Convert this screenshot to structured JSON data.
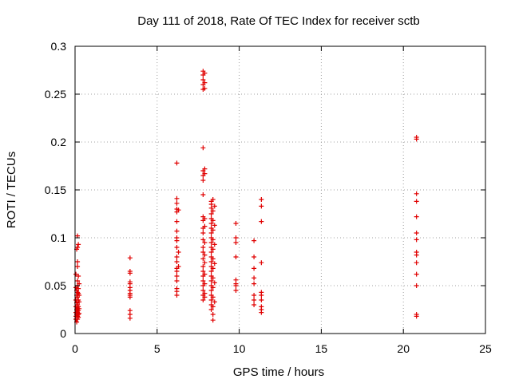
{
  "chart_data": {
    "type": "scatter",
    "title": "Day 111 of 2018, Rate Of TEC Index for receiver sctb",
    "xlabel": "GPS time / hours",
    "ylabel": "ROTI / TECUs",
    "xlim": [
      0,
      25
    ],
    "ylim": [
      0,
      0.3
    ],
    "xticks": [
      0,
      5,
      10,
      15,
      20,
      25
    ],
    "xtick_labels": [
      "0",
      "5",
      "10",
      "15",
      "20",
      "25"
    ],
    "yticks": [
      0,
      0.05,
      0.1,
      0.15,
      0.2,
      0.25,
      0.3
    ],
    "ytick_labels": [
      "0",
      "0.05",
      "0.1",
      "0.15",
      "0.2",
      "0.25",
      "0.3"
    ],
    "grid": true,
    "marker": "+",
    "color": "#e00000",
    "series": [
      {
        "name": "ROTI",
        "points": [
          [
            0.05,
            0.062
          ],
          [
            0.05,
            0.048
          ],
          [
            0.05,
            0.035
          ],
          [
            0.05,
            0.028
          ],
          [
            0.05,
            0.022
          ],
          [
            0.05,
            0.018
          ],
          [
            0.05,
            0.015
          ],
          [
            0.1,
            0.088
          ],
          [
            0.1,
            0.045
          ],
          [
            0.1,
            0.04
          ],
          [
            0.1,
            0.032
          ],
          [
            0.1,
            0.025
          ],
          [
            0.1,
            0.02
          ],
          [
            0.1,
            0.012
          ],
          [
            0.15,
            0.102
          ],
          [
            0.15,
            0.09
          ],
          [
            0.15,
            0.075
          ],
          [
            0.15,
            0.07
          ],
          [
            0.15,
            0.055
          ],
          [
            0.15,
            0.05
          ],
          [
            0.15,
            0.043
          ],
          [
            0.15,
            0.038
          ],
          [
            0.15,
            0.03
          ],
          [
            0.15,
            0.026
          ],
          [
            0.15,
            0.022
          ],
          [
            0.15,
            0.018
          ],
          [
            0.15,
            0.015
          ],
          [
            0.2,
            0.093
          ],
          [
            0.2,
            0.06
          ],
          [
            0.2,
            0.047
          ],
          [
            0.2,
            0.042
          ],
          [
            0.2,
            0.035
          ],
          [
            0.2,
            0.028
          ],
          [
            0.2,
            0.024
          ],
          [
            0.2,
            0.02
          ],
          [
            0.2,
            0.017
          ],
          [
            0.25,
            0.052
          ],
          [
            0.25,
            0.04
          ],
          [
            0.25,
            0.033
          ],
          [
            0.25,
            0.026
          ],
          [
            0.25,
            0.021
          ],
          [
            3.35,
            0.079
          ],
          [
            3.35,
            0.065
          ],
          [
            3.35,
            0.063
          ],
          [
            3.35,
            0.054
          ],
          [
            3.35,
            0.052
          ],
          [
            3.35,
            0.048
          ],
          [
            3.35,
            0.045
          ],
          [
            3.35,
            0.042
          ],
          [
            3.35,
            0.04
          ],
          [
            3.35,
            0.038
          ],
          [
            3.35,
            0.024
          ],
          [
            3.35,
            0.02
          ],
          [
            3.35,
            0.016
          ],
          [
            6.2,
            0.178
          ],
          [
            6.2,
            0.141
          ],
          [
            6.2,
            0.136
          ],
          [
            6.2,
            0.13
          ],
          [
            6.2,
            0.127
          ],
          [
            6.2,
            0.117
          ],
          [
            6.2,
            0.107
          ],
          [
            6.2,
            0.1
          ],
          [
            6.2,
            0.097
          ],
          [
            6.2,
            0.09
          ],
          [
            6.2,
            0.08
          ],
          [
            6.2,
            0.075
          ],
          [
            6.2,
            0.068
          ],
          [
            6.2,
            0.065
          ],
          [
            6.2,
            0.06
          ],
          [
            6.2,
            0.055
          ],
          [
            6.2,
            0.047
          ],
          [
            6.2,
            0.044
          ],
          [
            6.2,
            0.04
          ],
          [
            6.3,
            0.129
          ],
          [
            6.3,
            0.085
          ],
          [
            6.3,
            0.07
          ],
          [
            7.8,
            0.274
          ],
          [
            7.8,
            0.27
          ],
          [
            7.8,
            0.265
          ],
          [
            7.8,
            0.26
          ],
          [
            7.8,
            0.255
          ],
          [
            7.8,
            0.194
          ],
          [
            7.8,
            0.17
          ],
          [
            7.8,
            0.165
          ],
          [
            7.8,
            0.16
          ],
          [
            7.8,
            0.145
          ],
          [
            7.8,
            0.122
          ],
          [
            7.8,
            0.118
          ],
          [
            7.8,
            0.11
          ],
          [
            7.8,
            0.105
          ],
          [
            7.8,
            0.098
          ],
          [
            7.8,
            0.09
          ],
          [
            7.8,
            0.085
          ],
          [
            7.8,
            0.078
          ],
          [
            7.8,
            0.07
          ],
          [
            7.8,
            0.065
          ],
          [
            7.8,
            0.06
          ],
          [
            7.8,
            0.055
          ],
          [
            7.8,
            0.05
          ],
          [
            7.8,
            0.045
          ],
          [
            7.8,
            0.04
          ],
          [
            7.8,
            0.035
          ],
          [
            7.9,
            0.272
          ],
          [
            7.9,
            0.262
          ],
          [
            7.9,
            0.256
          ],
          [
            7.9,
            0.172
          ],
          [
            7.9,
            0.167
          ],
          [
            7.9,
            0.12
          ],
          [
            7.9,
            0.112
          ],
          [
            7.9,
            0.095
          ],
          [
            7.9,
            0.082
          ],
          [
            7.9,
            0.074
          ],
          [
            7.9,
            0.062
          ],
          [
            7.9,
            0.052
          ],
          [
            7.9,
            0.042
          ],
          [
            7.9,
            0.038
          ],
          [
            8.3,
            0.138
          ],
          [
            8.3,
            0.135
          ],
          [
            8.3,
            0.131
          ],
          [
            8.3,
            0.125
          ],
          [
            8.3,
            0.12
          ],
          [
            8.3,
            0.115
          ],
          [
            8.3,
            0.11
          ],
          [
            8.3,
            0.105
          ],
          [
            8.3,
            0.1
          ],
          [
            8.3,
            0.095
          ],
          [
            8.3,
            0.09
          ],
          [
            8.3,
            0.085
          ],
          [
            8.3,
            0.08
          ],
          [
            8.3,
            0.075
          ],
          [
            8.3,
            0.07
          ],
          [
            8.3,
            0.065
          ],
          [
            8.3,
            0.06
          ],
          [
            8.3,
            0.055
          ],
          [
            8.3,
            0.05
          ],
          [
            8.3,
            0.045
          ],
          [
            8.3,
            0.04
          ],
          [
            8.3,
            0.035
          ],
          [
            8.3,
            0.03
          ],
          [
            8.3,
            0.025
          ],
          [
            8.4,
            0.14
          ],
          [
            8.4,
            0.128
          ],
          [
            8.4,
            0.118
          ],
          [
            8.4,
            0.108
          ],
          [
            8.4,
            0.098
          ],
          [
            8.4,
            0.088
          ],
          [
            8.4,
            0.078
          ],
          [
            8.4,
            0.068
          ],
          [
            8.4,
            0.058
          ],
          [
            8.4,
            0.048
          ],
          [
            8.4,
            0.038
          ],
          [
            8.4,
            0.028
          ],
          [
            8.4,
            0.02
          ],
          [
            8.4,
            0.014
          ],
          [
            8.5,
            0.133
          ],
          [
            8.5,
            0.113
          ],
          [
            8.5,
            0.093
          ],
          [
            8.5,
            0.073
          ],
          [
            8.5,
            0.053
          ],
          [
            8.5,
            0.033
          ],
          [
            9.8,
            0.115
          ],
          [
            9.8,
            0.1
          ],
          [
            9.8,
            0.095
          ],
          [
            9.8,
            0.08
          ],
          [
            9.8,
            0.056
          ],
          [
            9.8,
            0.052
          ],
          [
            9.8,
            0.05
          ],
          [
            9.8,
            0.045
          ],
          [
            10.9,
            0.097
          ],
          [
            10.9,
            0.08
          ],
          [
            10.9,
            0.068
          ],
          [
            10.9,
            0.058
          ],
          [
            10.9,
            0.052
          ],
          [
            10.9,
            0.04
          ],
          [
            10.9,
            0.035
          ],
          [
            10.9,
            0.03
          ],
          [
            11.35,
            0.14
          ],
          [
            11.35,
            0.133
          ],
          [
            11.35,
            0.117
          ],
          [
            11.35,
            0.074
          ],
          [
            11.35,
            0.043
          ],
          [
            11.35,
            0.04
          ],
          [
            11.35,
            0.035
          ],
          [
            11.35,
            0.028
          ],
          [
            11.35,
            0.025
          ],
          [
            11.35,
            0.022
          ],
          [
            20.8,
            0.205
          ],
          [
            20.8,
            0.203
          ],
          [
            20.8,
            0.146
          ],
          [
            20.8,
            0.138
          ],
          [
            20.8,
            0.122
          ],
          [
            20.8,
            0.105
          ],
          [
            20.8,
            0.098
          ],
          [
            20.8,
            0.085
          ],
          [
            20.8,
            0.082
          ],
          [
            20.8,
            0.074
          ],
          [
            20.8,
            0.062
          ],
          [
            20.8,
            0.05
          ],
          [
            20.8,
            0.02
          ],
          [
            20.8,
            0.018
          ]
        ]
      }
    ]
  }
}
